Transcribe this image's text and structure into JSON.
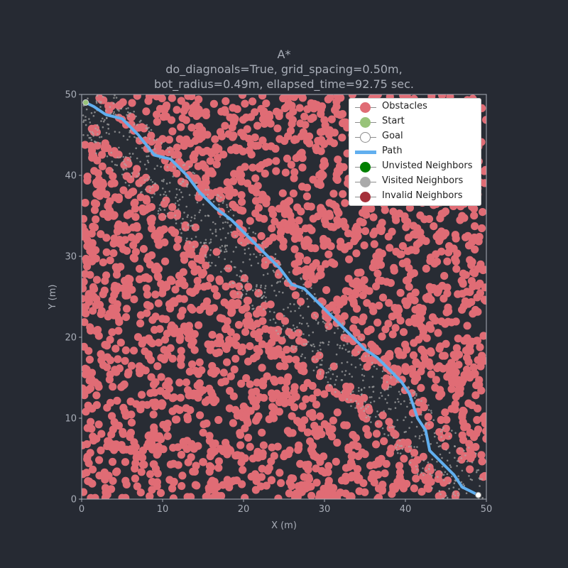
{
  "chart_data": {
    "type": "scatter",
    "title": "A*",
    "subtitle_line1": "do_diagnoals=True, grid_spacing=0.50m,",
    "subtitle_line2": "bot_radius=0.49m, ellapsed_time=92.75 sec.",
    "xlabel": "X (m)",
    "ylabel": "Y (m)",
    "xlim": [
      0,
      50
    ],
    "ylim": [
      0,
      50
    ],
    "xticks": [
      "0",
      "10",
      "20",
      "30",
      "40",
      "50"
    ],
    "yticks": [
      "0",
      "10",
      "20",
      "30",
      "40",
      "50"
    ],
    "grid": false,
    "legend_position": "top-right",
    "start": [
      0.5,
      49.0
    ],
    "goal": [
      49.0,
      0.5
    ],
    "path": [
      [
        0.5,
        49.0
      ],
      [
        1.5,
        48.5
      ],
      [
        3.0,
        47.5
      ],
      [
        5.0,
        47.0
      ],
      [
        7.0,
        45.0
      ],
      [
        9.0,
        42.5
      ],
      [
        11.0,
        42.0
      ],
      [
        13.0,
        40.0
      ],
      [
        14.5,
        38.0
      ],
      [
        16.5,
        36.0
      ],
      [
        18.5,
        34.5
      ],
      [
        20.0,
        33.0
      ],
      [
        21.5,
        31.5
      ],
      [
        23.0,
        30.0
      ],
      [
        24.5,
        28.5
      ],
      [
        26.0,
        26.5
      ],
      [
        27.5,
        26.0
      ],
      [
        29.0,
        24.5
      ],
      [
        30.5,
        23.0
      ],
      [
        32.0,
        21.5
      ],
      [
        33.5,
        20.0
      ],
      [
        35.0,
        18.5
      ],
      [
        36.5,
        17.5
      ],
      [
        38.0,
        16.0
      ],
      [
        39.5,
        14.5
      ],
      [
        40.5,
        13.0
      ],
      [
        41.5,
        10.0
      ],
      [
        42.5,
        8.5
      ],
      [
        43.0,
        6.0
      ],
      [
        44.5,
        4.5
      ],
      [
        46.0,
        3.0
      ],
      [
        47.0,
        1.5
      ],
      [
        48.0,
        1.0
      ],
      [
        49.0,
        0.5
      ]
    ],
    "series": [
      {
        "name": "Obstacles",
        "color": "#e06c75"
      },
      {
        "name": "Start",
        "color": "#98c379"
      },
      {
        "name": "Goal",
        "color": "#ffffff"
      },
      {
        "name": "Path",
        "color": "#61afef"
      },
      {
        "name": "Unvisted Neighbors",
        "color": "#008000"
      },
      {
        "name": "Visited Neighbors",
        "color": "#aaaaaa"
      },
      {
        "name": "Invalid Neighbors",
        "color": "#a5303a"
      }
    ],
    "colors": {
      "background": "#262a33",
      "plot_background": "#282c34",
      "obstacle": "#e06c75",
      "path": "#61afef",
      "visited": "#aaaaaa",
      "text": "#a9aeb8"
    }
  }
}
